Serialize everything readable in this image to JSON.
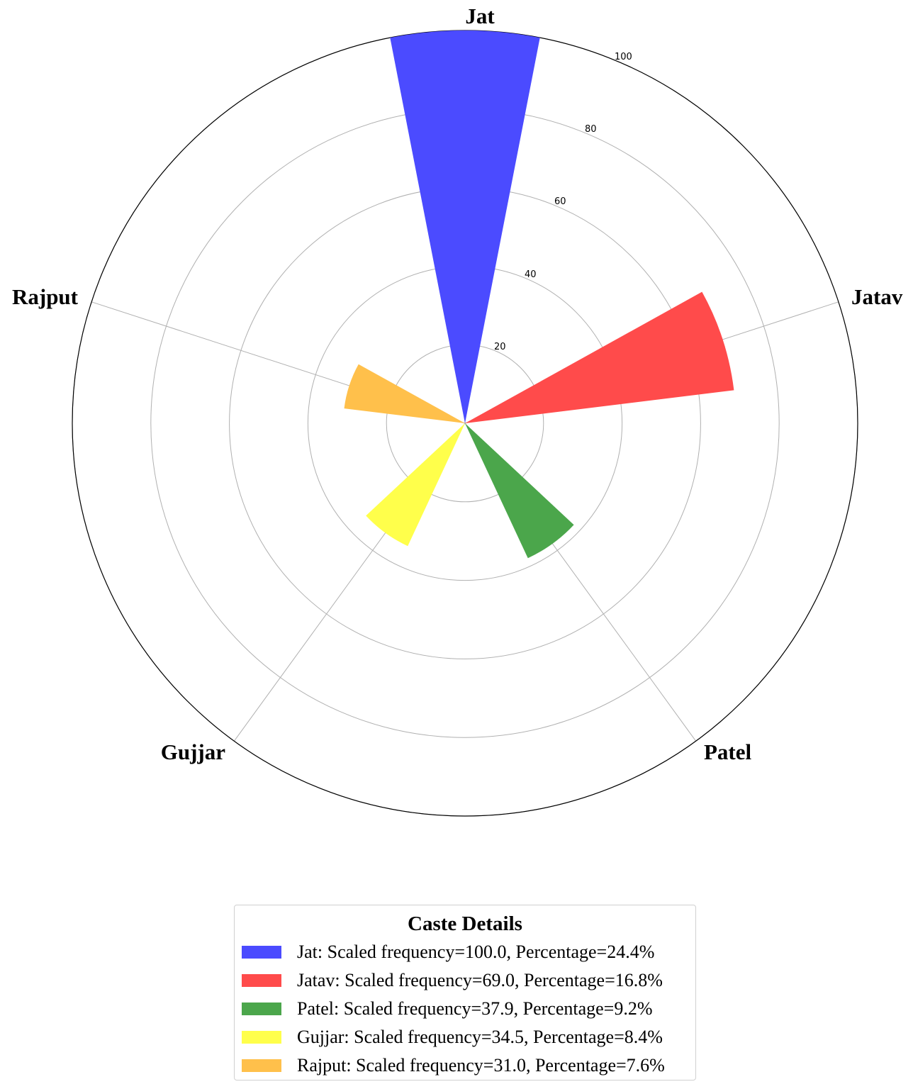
{
  "chart_data": {
    "type": "polar-bar",
    "categories": [
      "Jat",
      "Jatav",
      "Patel",
      "Gujjar",
      "Rajput"
    ],
    "series": [
      {
        "values": [
          100.0,
          69.0,
          37.9,
          34.5,
          31.0
        ],
        "colors": [
          "#4b4bff",
          "#ff4b4b",
          "#4ba64b",
          "#ffff4b",
          "#ffc04b"
        ]
      }
    ],
    "radial_ticks": [
      "20",
      "40",
      "60",
      "80",
      "100"
    ],
    "rmax": 100,
    "grid": true,
    "legend": {
      "title": "Caste Details",
      "placement": "bottom-center",
      "entries": [
        "Jat: Scaled frequency=100.0, Percentage=24.4%",
        "Jatav: Scaled frequency=69.0, Percentage=16.8%",
        "Patel: Scaled frequency=37.9, Percentage=9.2%",
        "Gujjar: Scaled frequency=34.5, Percentage=8.4%",
        "Rajput: Scaled frequency=31.0, Percentage=7.6%"
      ]
    }
  }
}
